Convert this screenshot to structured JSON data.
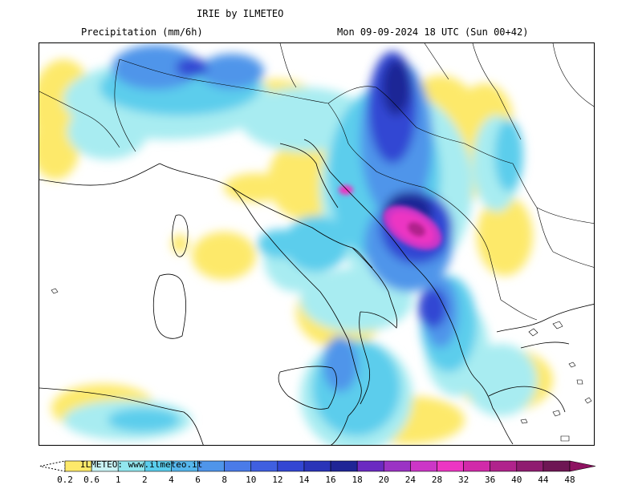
{
  "header": {
    "title": "IRIE by ILMETEO",
    "subtitle": "Precipitation (mm/6h)",
    "valid_time": "Mon 09-09-2024 18 UTC (Sun 00+42)"
  },
  "legend": {
    "credit": "ILMETEO: www.ilmeteo.it",
    "levels": [
      "0.2",
      "0.6",
      "1",
      "2",
      "4",
      "6",
      "8",
      "10",
      "12",
      "14",
      "16",
      "18",
      "20",
      "24",
      "28",
      "32",
      "36",
      "40",
      "44",
      "48"
    ],
    "colors": [
      "#fde96a",
      "#c9f2f4",
      "#92e6ee",
      "#5bcdec",
      "#56b6ec",
      "#4f95ea",
      "#4a7be8",
      "#3f5fe0",
      "#3346d3",
      "#2a34b8",
      "#1f2596",
      "#6b2ac1",
      "#9b33c4",
      "#cc36c7",
      "#ec36c3",
      "#d12aa9",
      "#b0238c",
      "#8f1c70",
      "#6e1654",
      "#8e1261"
    ],
    "gradient_colors": {
      "yellow": "#fde96a",
      "cyan_light": "#c9f2f4",
      "cyan": "#5bcdec",
      "blue": "#4f95ea",
      "blue_dark": "#3346d3",
      "navy": "#1f2596",
      "magenta": "#ec36c3",
      "magenta_dark": "#b0238c"
    }
  }
}
